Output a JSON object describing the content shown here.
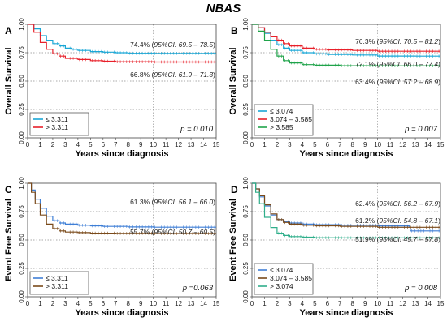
{
  "page_title": "NBAS",
  "chart_data": [
    {
      "panel": "A",
      "type": "line",
      "ylabel": "Overall Survival",
      "xlabel": "Years since diagnosis",
      "xlim": [
        0,
        15
      ],
      "ylim": [
        0,
        1
      ],
      "x_ticks": [
        "0",
        "1",
        "2",
        "3",
        "4",
        "5",
        "6",
        "7",
        "8",
        "9",
        "10",
        "11",
        "12",
        "13",
        "14",
        "15"
      ],
      "y_ticks": [
        "0.00",
        "0.25",
        "0.50",
        "0.75",
        "1.00"
      ],
      "legend": "bottom-left",
      "series": [
        {
          "name": "≤ 3.311",
          "color": "#1aa7d6",
          "points": [
            [
              0,
              1.0
            ],
            [
              0.5,
              0.96
            ],
            [
              1,
              0.9
            ],
            [
              1.5,
              0.86
            ],
            [
              2,
              0.83
            ],
            [
              2.5,
              0.81
            ],
            [
              3,
              0.79
            ],
            [
              3.5,
              0.78
            ],
            [
              4,
              0.77
            ],
            [
              5,
              0.76
            ],
            [
              6,
              0.755
            ],
            [
              7,
              0.75
            ],
            [
              8,
              0.745
            ],
            [
              10,
              0.744
            ],
            [
              15,
              0.744
            ]
          ]
        },
        {
          "name": "> 3.311",
          "color": "#e8202a",
          "points": [
            [
              0,
              1.0
            ],
            [
              0.5,
              0.93
            ],
            [
              1,
              0.84
            ],
            [
              1.5,
              0.78
            ],
            [
              2,
              0.74
            ],
            [
              2.5,
              0.72
            ],
            [
              3,
              0.7
            ],
            [
              4,
              0.69
            ],
            [
              5,
              0.68
            ],
            [
              6,
              0.675
            ],
            [
              7,
              0.67
            ],
            [
              10,
              0.668
            ],
            [
              15,
              0.668
            ]
          ]
        }
      ],
      "annotations": [
        {
          "value": "74.4%",
          "ci": "95%CI: 69.5 – 78.5"
        },
        {
          "value": "66.8%",
          "ci": "95%CI: 61.9 – 71.3"
        }
      ],
      "pvalue": "p = 0.010"
    },
    {
      "panel": "B",
      "type": "line",
      "ylabel": "Overall Survival",
      "xlabel": "Years since diagnosis",
      "xlim": [
        0,
        15
      ],
      "ylim": [
        0,
        1
      ],
      "x_ticks": [
        "0",
        "1",
        "2",
        "3",
        "4",
        "5",
        "6",
        "7",
        "8",
        "9",
        "10",
        "11",
        "12",
        "13",
        "14",
        "15"
      ],
      "y_ticks": [
        "0.00",
        "0.25",
        "0.50",
        "0.75",
        "1.00"
      ],
      "legend": "bottom-left",
      "series": [
        {
          "name": "≤ 3.074",
          "color": "#1aa7d6",
          "points": [
            [
              0,
              1.0
            ],
            [
              0.5,
              0.97
            ],
            [
              1,
              0.92
            ],
            [
              1.5,
              0.86
            ],
            [
              2,
              0.82
            ],
            [
              2.5,
              0.79
            ],
            [
              3,
              0.77
            ],
            [
              4,
              0.75
            ],
            [
              5,
              0.74
            ],
            [
              6,
              0.735
            ],
            [
              8,
              0.73
            ],
            [
              10,
              0.721
            ],
            [
              13,
              0.72
            ],
            [
              15,
              0.72
            ]
          ]
        },
        {
          "name": "3.074 – 3.585",
          "color": "#e8202a",
          "points": [
            [
              0,
              1.0
            ],
            [
              0.5,
              0.97
            ],
            [
              1,
              0.93
            ],
            [
              1.5,
              0.89
            ],
            [
              2,
              0.86
            ],
            [
              2.5,
              0.83
            ],
            [
              3,
              0.81
            ],
            [
              4,
              0.79
            ],
            [
              5,
              0.78
            ],
            [
              6,
              0.775
            ],
            [
              8,
              0.77
            ],
            [
              10,
              0.763
            ],
            [
              15,
              0.763
            ]
          ]
        },
        {
          "name": "> 3.585",
          "color": "#1fa34a",
          "points": [
            [
              0,
              1.0
            ],
            [
              0.5,
              0.94
            ],
            [
              1,
              0.86
            ],
            [
              1.5,
              0.78
            ],
            [
              2,
              0.72
            ],
            [
              2.5,
              0.68
            ],
            [
              3,
              0.66
            ],
            [
              4,
              0.645
            ],
            [
              5,
              0.64
            ],
            [
              7,
              0.635
            ],
            [
              10,
              0.634
            ],
            [
              15,
              0.634
            ]
          ]
        }
      ],
      "annotations": [
        {
          "value": "76.3%",
          "ci": "95%CI: 70.5 – 81.2"
        },
        {
          "value": "72.1%",
          "ci": "95%CI: 66.0 – 77.4"
        },
        {
          "value": "63.4%",
          "ci": "95%CI: 57.2 – 68.9"
        }
      ],
      "pvalue": "p = 0.007"
    },
    {
      "panel": "C",
      "type": "line",
      "ylabel": "Event Free Survival",
      "xlabel": "Years since diagnosis",
      "xlim": [
        0,
        15
      ],
      "ylim": [
        0,
        1
      ],
      "x_ticks": [
        "0",
        "1",
        "2",
        "3",
        "4",
        "5",
        "6",
        "7",
        "8",
        "9",
        "10",
        "11",
        "12",
        "13",
        "14",
        "15"
      ],
      "y_ticks": [
        "0.00",
        "0.25",
        "0.50",
        "0.75",
        "1.00"
      ],
      "legend": "bottom-left",
      "series": [
        {
          "name": "≤ 3.311",
          "color": "#3f7fd6",
          "points": [
            [
              0,
              1.0
            ],
            [
              0.3,
              0.94
            ],
            [
              0.6,
              0.86
            ],
            [
              1,
              0.78
            ],
            [
              1.5,
              0.71
            ],
            [
              2,
              0.67
            ],
            [
              2.5,
              0.65
            ],
            [
              3,
              0.64
            ],
            [
              4,
              0.63
            ],
            [
              5,
              0.625
            ],
            [
              6,
              0.62
            ],
            [
              8,
              0.615
            ],
            [
              10,
              0.613
            ],
            [
              15,
              0.613
            ]
          ]
        },
        {
          "name": "> 3.311",
          "color": "#7a4a1a",
          "points": [
            [
              0,
              1.0
            ],
            [
              0.3,
              0.92
            ],
            [
              0.6,
              0.82
            ],
            [
              1,
              0.72
            ],
            [
              1.5,
              0.64
            ],
            [
              2,
              0.6
            ],
            [
              2.5,
              0.58
            ],
            [
              3,
              0.57
            ],
            [
              4,
              0.565
            ],
            [
              5,
              0.56
            ],
            [
              7,
              0.558
            ],
            [
              10,
              0.557
            ],
            [
              15,
              0.557
            ]
          ]
        }
      ],
      "annotations": [
        {
          "value": "61.3%",
          "ci": "95%CI: 56.1 – 66.0"
        },
        {
          "value": "55.7%",
          "ci": "95%CI: 50.7 – 60.5"
        }
      ],
      "pvalue": "p =0.063"
    },
    {
      "panel": "D",
      "type": "line",
      "ylabel": "Event Free Survival",
      "xlabel": "Years since diagnosis",
      "xlim": [
        0,
        15
      ],
      "ylim": [
        0,
        1
      ],
      "x_ticks": [
        "0",
        "1",
        "2",
        "3",
        "4",
        "5",
        "6",
        "7",
        "8",
        "9",
        "10",
        "11",
        "12",
        "13",
        "14",
        "15"
      ],
      "y_ticks": [
        "0.00",
        "0.25",
        "0.50",
        "0.75",
        "1.00"
      ],
      "legend": "bottom-left",
      "series": [
        {
          "name": "≤ 3.074",
          "color": "#3f7fd6",
          "points": [
            [
              0,
              1.0
            ],
            [
              0.3,
              0.95
            ],
            [
              0.6,
              0.88
            ],
            [
              1,
              0.8
            ],
            [
              1.5,
              0.72
            ],
            [
              2,
              0.68
            ],
            [
              2.5,
              0.66
            ],
            [
              3,
              0.65
            ],
            [
              4,
              0.64
            ],
            [
              5,
              0.635
            ],
            [
              7,
              0.63
            ],
            [
              10,
              0.624
            ],
            [
              12.5,
              0.62
            ],
            [
              12.6,
              0.58
            ],
            [
              15,
              0.58
            ]
          ]
        },
        {
          "name": "3.074 – 3.585",
          "color": "#7a4a1a",
          "points": [
            [
              0,
              1.0
            ],
            [
              0.3,
              0.95
            ],
            [
              0.6,
              0.89
            ],
            [
              1,
              0.81
            ],
            [
              1.5,
              0.73
            ],
            [
              2,
              0.68
            ],
            [
              2.5,
              0.655
            ],
            [
              3,
              0.64
            ],
            [
              4,
              0.63
            ],
            [
              5,
              0.625
            ],
            [
              7,
              0.62
            ],
            [
              10,
              0.612
            ],
            [
              15,
              0.612
            ]
          ]
        },
        {
          "name": "> 3.074",
          "color": "#2fae8a",
          "points": [
            [
              0,
              1.0
            ],
            [
              0.3,
              0.92
            ],
            [
              0.6,
              0.82
            ],
            [
              1,
              0.7
            ],
            [
              1.5,
              0.61
            ],
            [
              2,
              0.56
            ],
            [
              2.5,
              0.54
            ],
            [
              3,
              0.53
            ],
            [
              4,
              0.525
            ],
            [
              5,
              0.52
            ],
            [
              7,
              0.519
            ],
            [
              10,
              0.519
            ],
            [
              15,
              0.519
            ]
          ]
        }
      ],
      "annotations": [
        {
          "value": "62.4%",
          "ci": "95%CI: 56.2 – 67.9"
        },
        {
          "value": "61.2%",
          "ci": "95%CI: 54.8 – 67.1"
        },
        {
          "value": "51.9%",
          "ci": "95%CI: 45.7 – 57.8"
        }
      ],
      "pvalue": "p = 0.008"
    }
  ]
}
